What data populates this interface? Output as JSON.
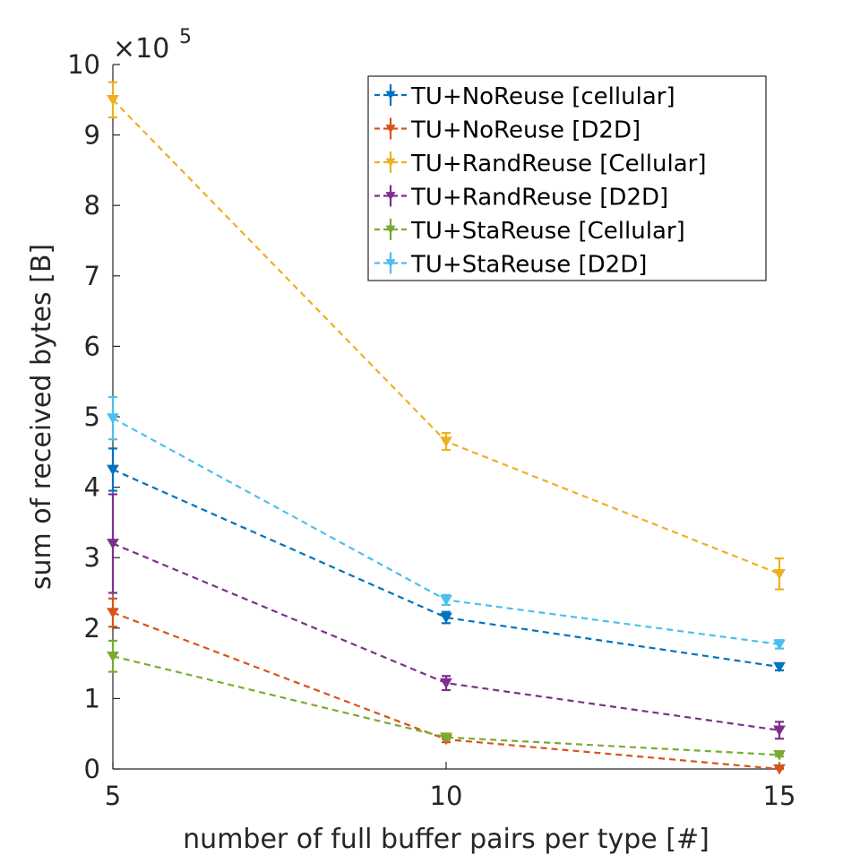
{
  "chart_data": {
    "type": "line",
    "title": "",
    "xlabel": "number of full buffer pairs per type [#]",
    "ylabel": "sum of received bytes [B]",
    "y_multiplier_base": "×10",
    "y_multiplier_exp": "5",
    "x": [
      5,
      10,
      15
    ],
    "x_ticks": [
      5,
      10,
      15
    ],
    "y_ticks": [
      0,
      1,
      2,
      3,
      4,
      5,
      6,
      7,
      8,
      9,
      10
    ],
    "xlim": [
      5,
      15
    ],
    "ylim": [
      0,
      10
    ],
    "grid": false,
    "legend_position": "top-right",
    "series": [
      {
        "name": "TU+NoReuse [cellular]",
        "color": "#0072BD",
        "values": [
          4.25,
          2.15,
          1.45
        ],
        "err": [
          0.3,
          0.08,
          0.05
        ]
      },
      {
        "name": "TU+NoReuse [D2D]",
        "color": "#D95319",
        "values": [
          2.22,
          0.42,
          0.0
        ],
        "err": [
          0.2,
          0.04,
          0.01
        ]
      },
      {
        "name": "TU+RandReuse [Cellular]",
        "color": "#EDB120",
        "values": [
          9.5,
          4.65,
          2.77
        ],
        "err": [
          0.25,
          0.12,
          0.22
        ]
      },
      {
        "name": "TU+RandReuse [D2D]",
        "color": "#7E2F8E",
        "values": [
          3.2,
          1.22,
          0.55
        ],
        "err": [
          0.7,
          0.1,
          0.12
        ]
      },
      {
        "name": "TU+StaReuse [Cellular]",
        "color": "#77AC30",
        "values": [
          1.6,
          0.45,
          0.2
        ],
        "err": [
          0.22,
          0.03,
          0.02
        ]
      },
      {
        "name": "TU+StaReuse [D2D]",
        "color": "#4DBEEE",
        "values": [
          4.98,
          2.4,
          1.77
        ],
        "err": [
          0.3,
          0.07,
          0.06
        ]
      }
    ]
  }
}
